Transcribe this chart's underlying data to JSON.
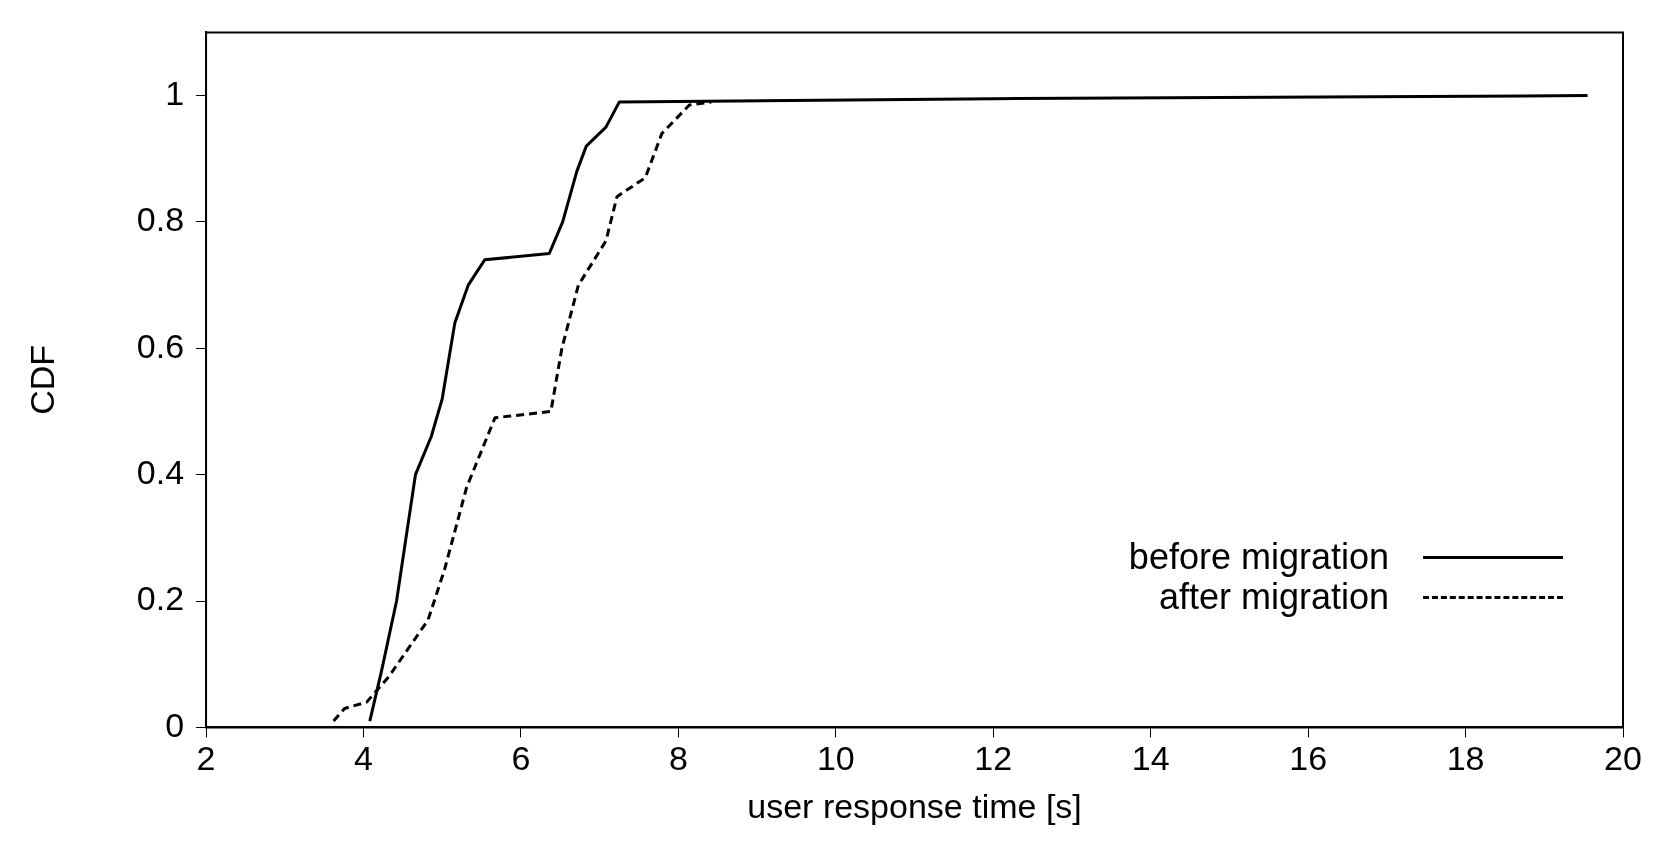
{
  "chart_data": {
    "type": "line",
    "xlabel": "user response time [s]",
    "ylabel": "CDF",
    "xlim": [
      2,
      20
    ],
    "xticks": [
      2,
      4,
      6,
      8,
      10,
      12,
      14,
      16,
      18,
      20
    ],
    "ylim": [
      0,
      1.1
    ],
    "yticks": [
      0,
      0.2,
      0.4,
      0.6,
      0.8,
      1
    ],
    "grid": false,
    "legend": "bottom right",
    "marker": "none",
    "series": [
      {
        "name": "before migration",
        "color": "#000000",
        "line_style": "solid",
        "x": [
          4.08,
          4.23,
          4.42,
          4.66,
          4.86,
          5.0,
          5.16,
          5.33,
          5.54,
          6.36,
          6.53,
          6.71,
          6.83,
          7.08,
          7.25,
          12,
          19.55
        ],
        "values": [
          0.01,
          0.09,
          0.2,
          0.4,
          0.46,
          0.52,
          0.64,
          0.7,
          0.74,
          0.75,
          0.8,
          0.88,
          0.92,
          0.95,
          0.99,
          0.995,
          1.0
        ]
      },
      {
        "name": "after migration",
        "color": "#000000",
        "line_style": "dashed",
        "x": [
          3.62,
          3.76,
          4.04,
          4.32,
          4.82,
          5.03,
          5.31,
          5.67,
          6.38,
          6.52,
          6.73,
          7.08,
          7.22,
          7.58,
          7.79,
          8.14,
          8.42
        ],
        "values": [
          0.01,
          0.03,
          0.04,
          0.08,
          0.17,
          0.25,
          0.38,
          0.49,
          0.5,
          0.6,
          0.7,
          0.77,
          0.84,
          0.87,
          0.94,
          0.985,
          0.99
        ]
      }
    ]
  }
}
